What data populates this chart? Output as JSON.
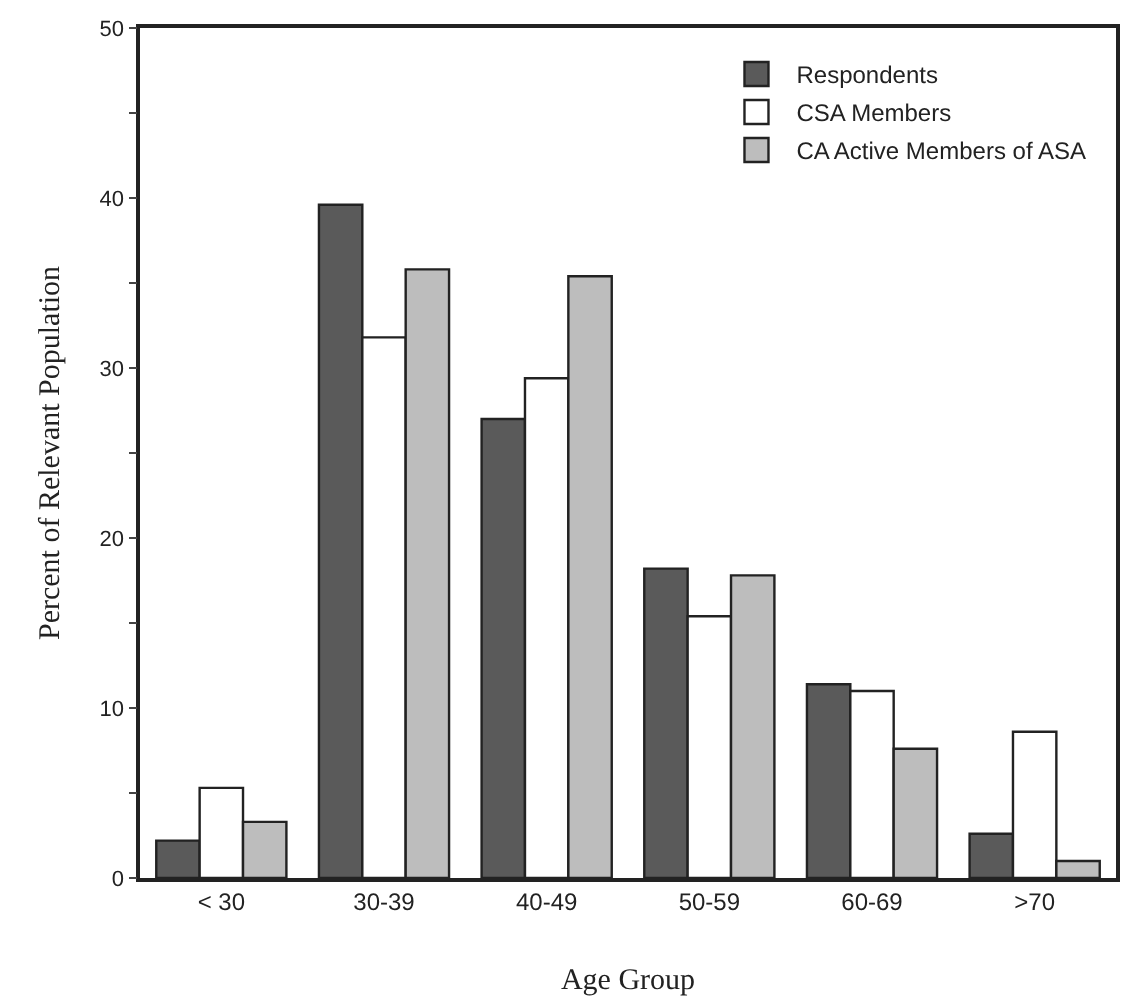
{
  "chart_data": {
    "type": "bar",
    "xlabel": "Age Group",
    "ylabel": "Percent of Relevant Population",
    "categories": [
      "< 30",
      "30-39",
      "40-49",
      "50-59",
      "60-69",
      ">70"
    ],
    "series": [
      {
        "name": "Respondents",
        "color": "#5a5a5a",
        "values": [
          2.2,
          39.6,
          27,
          18.2,
          11.4,
          2.6
        ]
      },
      {
        "name": "CSA Members",
        "color": "#ffffff",
        "values": [
          5.3,
          31.8,
          29.4,
          15.4,
          11,
          8.6
        ]
      },
      {
        "name": "CA Active Members of ASA",
        "color": "#bdbdbd",
        "values": [
          3.3,
          35.8,
          35.4,
          17.8,
          7.6,
          1.0
        ]
      }
    ],
    "ylim": [
      0,
      50
    ],
    "yticks": [
      0,
      {
        "value": 5,
        "label": null
      },
      10,
      {
        "value": 15,
        "label": null
      },
      20,
      {
        "value": 25,
        "label": null
      },
      30,
      {
        "value": 35,
        "label": null
      },
      40,
      {
        "value": 45,
        "label": null
      },
      50
    ],
    "grid": false,
    "legend": "top right"
  }
}
